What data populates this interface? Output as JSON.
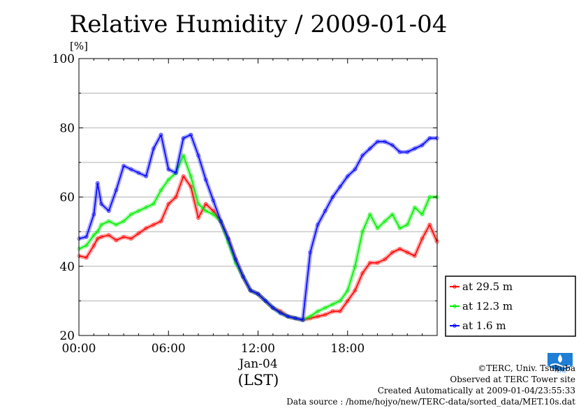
{
  "title": "Relative Humidity / 2009-01-04",
  "chart_data": {
    "type": "line",
    "title": "Relative Humidity / 2009-01-04",
    "ylabel": "[%]",
    "xlabel": "(LST)",
    "x_date_label": "Jan-04",
    "ylim": [
      20,
      100
    ],
    "xlim": [
      0,
      24
    ],
    "y_ticks": [
      20,
      40,
      60,
      80,
      100
    ],
    "x_ticks": [
      {
        "value": 0,
        "label": "00:00"
      },
      {
        "value": 6,
        "label": "06:00"
      },
      {
        "value": 12,
        "label": "12:00"
      },
      {
        "value": 18,
        "label": "18:00"
      }
    ],
    "grid": true,
    "legend_placement": "right",
    "x": [
      0,
      0.5,
      1,
      1.25,
      1.5,
      2,
      2.5,
      3,
      3.5,
      4,
      4.5,
      5,
      5.5,
      6,
      6.5,
      7,
      7.5,
      8,
      8.5,
      9,
      9.5,
      10,
      10.5,
      11,
      11.5,
      12,
      12.5,
      13,
      13.5,
      14,
      14.5,
      15,
      15.5,
      16,
      16.5,
      17,
      17.5,
      18,
      18.5,
      19,
      19.5,
      20,
      20.5,
      21,
      21.5,
      22,
      22.5,
      23,
      23.5,
      24
    ],
    "series": [
      {
        "name": "at 29.5 m",
        "color": "#ff0000",
        "values": [
          43,
          42.5,
          46,
          48,
          48.5,
          49,
          47.5,
          48.5,
          48,
          49.5,
          51,
          52,
          53,
          58,
          60,
          66,
          63,
          54,
          58,
          56,
          53,
          48,
          42,
          37,
          33,
          32,
          30,
          28,
          27,
          25.5,
          25,
          24.5,
          25,
          25.5,
          26,
          27,
          27,
          30,
          33,
          38,
          41,
          41,
          42,
          44,
          45,
          44,
          43,
          48,
          52,
          47
        ]
      },
      {
        "name": "at 12.3 m",
        "color": "#00ee00",
        "values": [
          45,
          46,
          49,
          50,
          52,
          53,
          52,
          53,
          55,
          56,
          57,
          58,
          62,
          65,
          67,
          72,
          66,
          58,
          56,
          55,
          53,
          47,
          41,
          37,
          33,
          32,
          30,
          28,
          26.5,
          25.5,
          25,
          24.5,
          25.5,
          27,
          28,
          29,
          30,
          33,
          40,
          50,
          55,
          51,
          53,
          55,
          51,
          52,
          57,
          55,
          60,
          60
        ]
      },
      {
        "name": "at 1.6 m",
        "color": "#0000ff",
        "values": [
          48,
          48.5,
          55,
          64,
          58,
          56,
          62,
          69,
          68,
          67,
          66,
          74,
          78,
          68,
          67,
          77,
          78,
          72,
          65,
          59,
          53,
          48,
          42,
          37,
          33,
          32,
          30,
          28,
          26.5,
          25.5,
          25,
          24.5,
          44,
          52,
          56,
          60,
          63,
          66,
          68,
          72,
          74,
          76,
          76,
          75,
          73,
          73,
          74,
          75,
          77,
          77
        ]
      }
    ]
  },
  "credits": {
    "line1": "©TERC, Univ. Tsukuba",
    "line2": "Observed at TERC Tower site",
    "line3": "Created Automatically at 2009-01-04/23:55:33",
    "line4": "Data source : /home/hojyo/new/TERC-data/sorted_data/MET.10s.dat"
  },
  "logo": {
    "text": "TERC",
    "color": "#1f7fd6"
  }
}
